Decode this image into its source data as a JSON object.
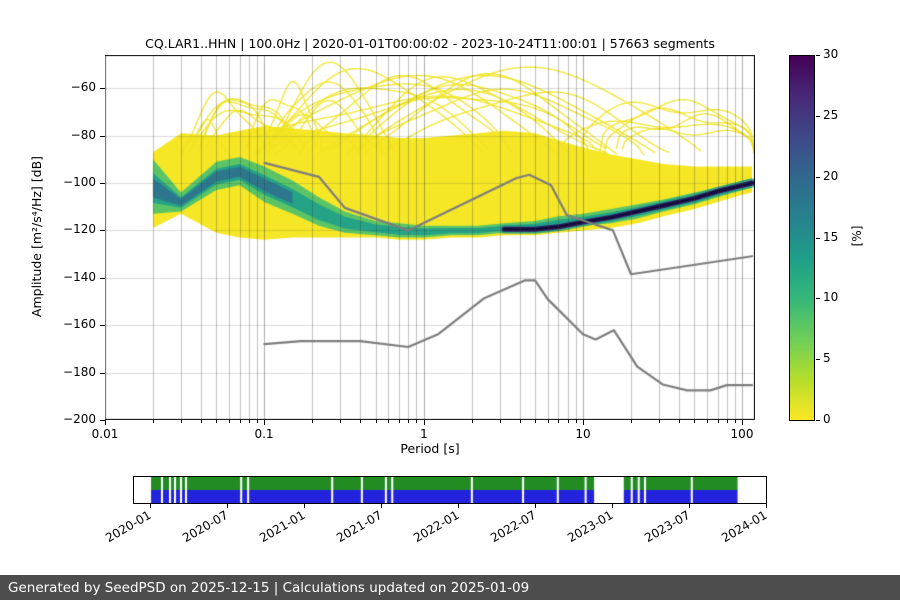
{
  "chart_data": {
    "type": "heatmap",
    "subtype": "ppsd-probabilistic-power-spectral-density",
    "title": "CQ.LAR1..HHN | 100.0Hz | 2020-01-01T00:00:02 - 2023-10-24T11:00:01 | 57663 segments",
    "station": {
      "id": "CQ.LAR1..HHN",
      "sampling_rate": "100.0Hz",
      "start": "2020-01-01T00:00:02",
      "end": "2023-10-24T11:00:01",
      "segments": 57663
    },
    "xlabel": "Period [s]",
    "ylabel": "Amplitude [m²/s⁴/Hz] [dB]",
    "xscale": "log",
    "xlim": [
      0.01,
      120
    ],
    "ylim": [
      -200,
      -46
    ],
    "x_ticks": [
      {
        "v": 0.01,
        "label": "0.01"
      },
      {
        "v": 0.1,
        "label": "0.1"
      },
      {
        "v": 1,
        "label": "1"
      },
      {
        "v": 10,
        "label": "10"
      },
      {
        "v": 100,
        "label": "100"
      }
    ],
    "y_ticks": [
      {
        "v": -200,
        "label": "−200"
      },
      {
        "v": -180,
        "label": "−180"
      },
      {
        "v": -160,
        "label": "−160"
      },
      {
        "v": -140,
        "label": "−140"
      },
      {
        "v": -120,
        "label": "−120"
      },
      {
        "v": -100,
        "label": "−100"
      },
      {
        "v": -80,
        "label": "−80"
      },
      {
        "v": -60,
        "label": "−60"
      }
    ],
    "colorbar": {
      "label": "[%]",
      "min": 0,
      "max": 30,
      "ticks": [
        0,
        5,
        10,
        15,
        20,
        25,
        30
      ],
      "colors": [
        "#fde725",
        "#b5de2b",
        "#6ece58",
        "#35b779",
        "#1f9e89",
        "#26828e",
        "#31688e",
        "#3e4989",
        "#482878",
        "#440154"
      ]
    },
    "colors": {
      "low_probability": "#f6e726",
      "spaghetti": "#f0e31f",
      "mid_probability": "#4ac16d",
      "high_probability": "#1f9e89",
      "core": "#2f6c8e",
      "ridge": "#2a115c",
      "ridge_core": "#150833",
      "noise_models": "#7d7d7d"
    },
    "ppsd_envelope": {
      "periods": [
        0.02,
        0.03,
        0.05,
        0.07,
        0.1,
        0.15,
        0.22,
        0.32,
        0.5,
        0.7,
        1.0,
        1.5,
        2.2,
        3.2,
        5.0,
        7.0,
        10,
        15,
        22,
        32,
        50,
        70,
        100,
        115
      ],
      "top_db": [
        -87,
        -79,
        -80,
        -78,
        -76,
        -77,
        -78,
        -79,
        -80,
        -81,
        -81,
        -80,
        -79,
        -78,
        -79,
        -82,
        -85,
        -88,
        -90,
        -92,
        -93,
        -93,
        -93,
        -93
      ],
      "bottom_db": [
        -119,
        -113,
        -121,
        -123,
        -124,
        -123,
        -123,
        -123,
        -123,
        -124,
        -124,
        -123,
        -123,
        -122,
        -122,
        -121,
        -120,
        -119,
        -117,
        -114,
        -111,
        -108,
        -105,
        -104
      ]
    },
    "high_probability_band": {
      "periods": [
        0.02,
        0.03,
        0.05,
        0.07,
        0.1,
        0.15,
        0.22,
        0.32,
        0.5,
        0.7,
        1.0,
        1.5,
        2.2,
        3.2,
        5.0,
        7.0,
        10,
        15,
        22,
        32,
        50,
        70,
        100,
        115
      ],
      "top_db": [
        -90,
        -104,
        -91,
        -89,
        -93,
        -99,
        -106,
        -112,
        -116,
        -117,
        -118,
        -118,
        -118,
        -117,
        -116,
        -114,
        -113,
        -111,
        -109,
        -107,
        -104,
        -102,
        -99,
        -98
      ],
      "bottom_db": [
        -113,
        -112,
        -103,
        -101,
        -108,
        -113,
        -118,
        -121,
        -122,
        -123,
        -123,
        -122,
        -122,
        -121,
        -121,
        -120,
        -118,
        -117,
        -115,
        -112,
        -109,
        -106,
        -103,
        -102
      ]
    },
    "mode_ridge": {
      "periods": [
        3.2,
        5,
        7,
        10,
        15,
        22,
        32,
        50,
        70,
        100,
        115
      ],
      "db": [
        -119.5,
        -119.5,
        -118.5,
        -116.5,
        -114.5,
        -112,
        -109.5,
        -106.5,
        -103.5,
        -101,
        -100
      ]
    },
    "noise_models": {
      "nhnm": {
        "periods": [
          0.1,
          0.22,
          0.32,
          0.8,
          3.8,
          4.6,
          6.3,
          7.9,
          15.4,
          20,
          115
        ],
        "db": [
          -91.5,
          -97.4,
          -110.5,
          -120.0,
          -98.0,
          -96.5,
          -101.0,
          -113.5,
          -120.0,
          -138.5,
          -130.9
        ]
      },
      "nlnm": {
        "periods": [
          0.1,
          0.17,
          0.4,
          0.8,
          1.24,
          2.4,
          4.3,
          5.0,
          6.0,
          10,
          12,
          15.6,
          21.9,
          31.6,
          45,
          63,
          80,
          115
        ],
        "db": [
          -168.0,
          -166.7,
          -166.7,
          -169.2,
          -163.7,
          -148.6,
          -141.1,
          -141.1,
          -149.0,
          -163.8,
          -166.0,
          -162.1,
          -177.5,
          -185.0,
          -187.5,
          -187.5,
          -185.3,
          -185.3
        ]
      }
    }
  },
  "coverage_timeline": {
    "tick_labels": [
      "2020-01",
      "2020-07",
      "2021-01",
      "2021-07",
      "2022-01",
      "2022-07",
      "2023-01",
      "2023-07",
      "2024-01"
    ],
    "colors": {
      "top_strip": "#228b22",
      "bottom_strip": "#2323dd"
    },
    "extent_frac": [
      0.027,
      0.955
    ],
    "gaps_frac": [
      [
        0.0427,
        0.0459
      ],
      [
        0.0554,
        0.0586
      ],
      [
        0.0633,
        0.0665
      ],
      [
        0.0728,
        0.076
      ],
      [
        0.0807,
        0.0839
      ],
      [
        0.168,
        0.1712
      ],
      [
        0.179,
        0.1822
      ],
      [
        0.312,
        0.3152
      ],
      [
        0.359,
        0.3622
      ],
      [
        0.397,
        0.4002
      ],
      [
        0.407,
        0.4102
      ],
      [
        0.533,
        0.5362
      ],
      [
        0.614,
        0.6172
      ],
      [
        0.669,
        0.6722
      ],
      [
        0.713,
        0.7162
      ],
      [
        0.728,
        0.775
      ],
      [
        0.786,
        0.7892
      ],
      [
        0.797,
        0.8002
      ],
      [
        0.807,
        0.8102
      ],
      [
        0.881,
        0.8842
      ]
    ]
  },
  "footer": {
    "text": "Generated by SeedPSD on 2025-12-15 | Calculations updated on 2025-01-09",
    "background": "#4d4d4d"
  }
}
